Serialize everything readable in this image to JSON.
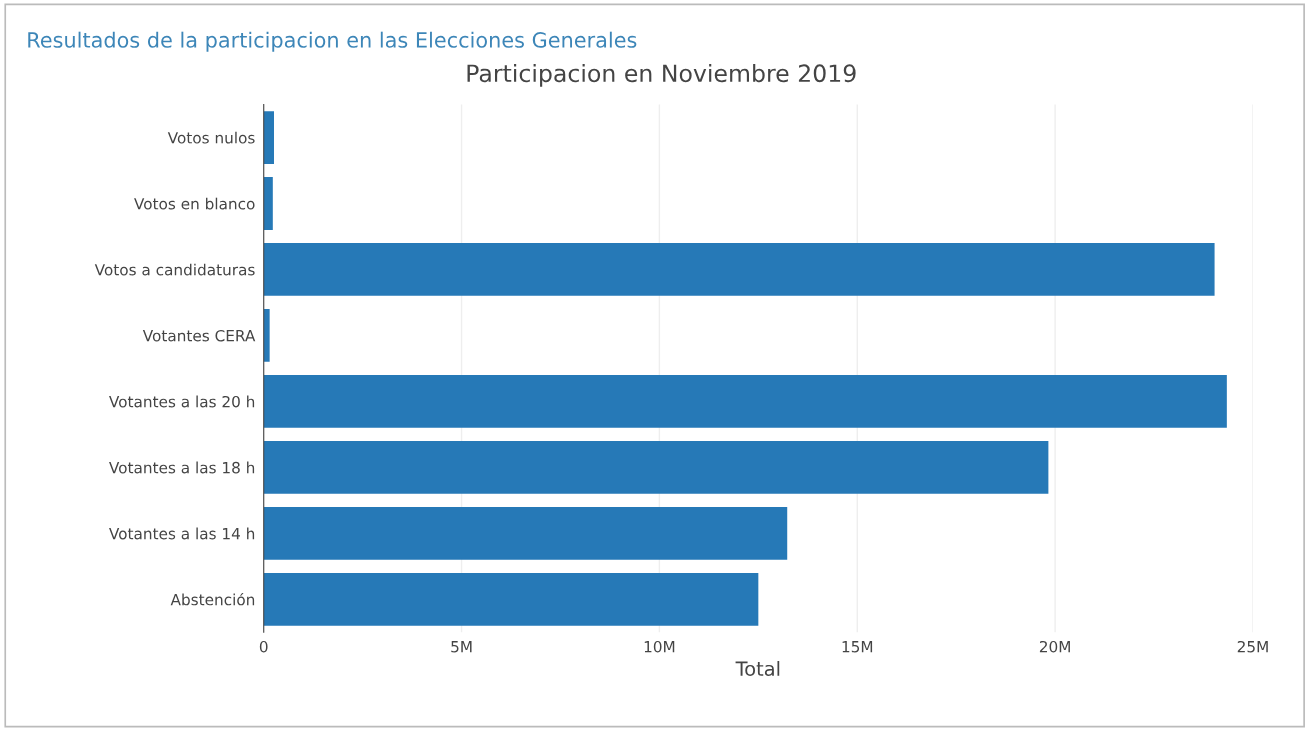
{
  "chart_data": {
    "type": "bar",
    "orientation": "horizontal",
    "title": "Participacion en Noviembre 2019",
    "subtitle": "Resultados de la participacion en las Elecciones Generales",
    "xlabel": "Total",
    "categories": [
      "Votos nulos",
      "Votos en blanco",
      "Votos a candidaturas",
      "Votantes CERA",
      "Votantes a las 20 h",
      "Votantes a las 18 h",
      "Votantes a las 14 h",
      "Abstención"
    ],
    "values": [
      260000,
      230000,
      24030000,
      150000,
      24340000,
      19830000,
      13230000,
      12500000
    ],
    "color": "#2679b7",
    "xlim": [
      0,
      25000000
    ],
    "xticks": [
      0,
      {
        "value": 5000000,
        "label": "5M"
      },
      {
        "value": 10000000,
        "label": "10M"
      },
      {
        "value": 15000000,
        "label": "15M"
      },
      {
        "value": 20000000,
        "label": "20M"
      },
      {
        "value": 25000000,
        "label": "25M"
      }
    ],
    "grid": "x"
  }
}
